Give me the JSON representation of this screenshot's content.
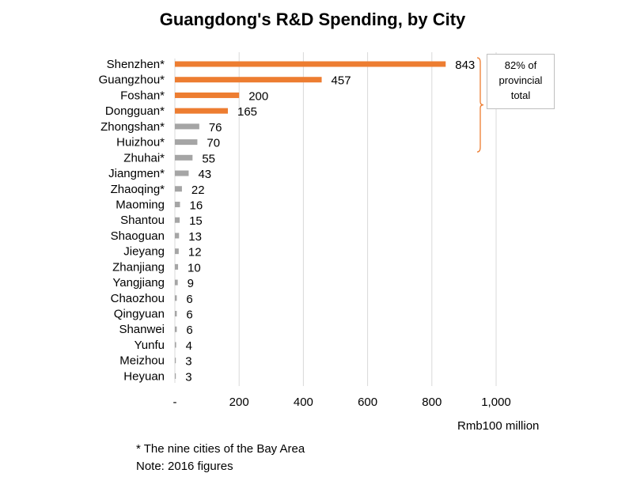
{
  "chart_data": {
    "type": "bar",
    "orientation": "horizontal",
    "title": "Guangdong's R&D Spending, by City",
    "categories": [
      "Shenzhen*",
      "Guangzhou*",
      "Foshan*",
      "Dongguan*",
      "Zhongshan*",
      "Huizhou*",
      "Zhuhai*",
      "Jiangmen*",
      "Zhaoqing*",
      "Maoming",
      "Shantou",
      "Shaoguan",
      "Jieyang",
      "Zhanjiang",
      "Yangjiang",
      "Chaozhou",
      "Qingyuan",
      "Shanwei",
      "Yunfu",
      "Meizhou",
      "Heyuan"
    ],
    "values": [
      843,
      457,
      200,
      165,
      76,
      70,
      55,
      43,
      22,
      16,
      15,
      13,
      12,
      10,
      9,
      6,
      6,
      6,
      4,
      3,
      3
    ],
    "highlight_count": 4,
    "colors": {
      "highlight": "#ed7d31",
      "other": "#a5a5a5",
      "grid": "#d9d9d9",
      "bracket": "#ed7d31"
    },
    "xlim": [
      0,
      1000
    ],
    "xticks": [
      0,
      200,
      400,
      600,
      800,
      1000
    ],
    "xtick_labels": [
      "-",
      "200",
      "400",
      "600",
      "800",
      "1,000"
    ],
    "xlabel": "Rmb100 million",
    "grid": true,
    "annotation": {
      "lines": [
        "82% of",
        "provincial",
        "total"
      ]
    }
  },
  "footnotes": {
    "line1": "* The nine cities of the Bay Area",
    "line2": "Note: 2016 figures"
  }
}
